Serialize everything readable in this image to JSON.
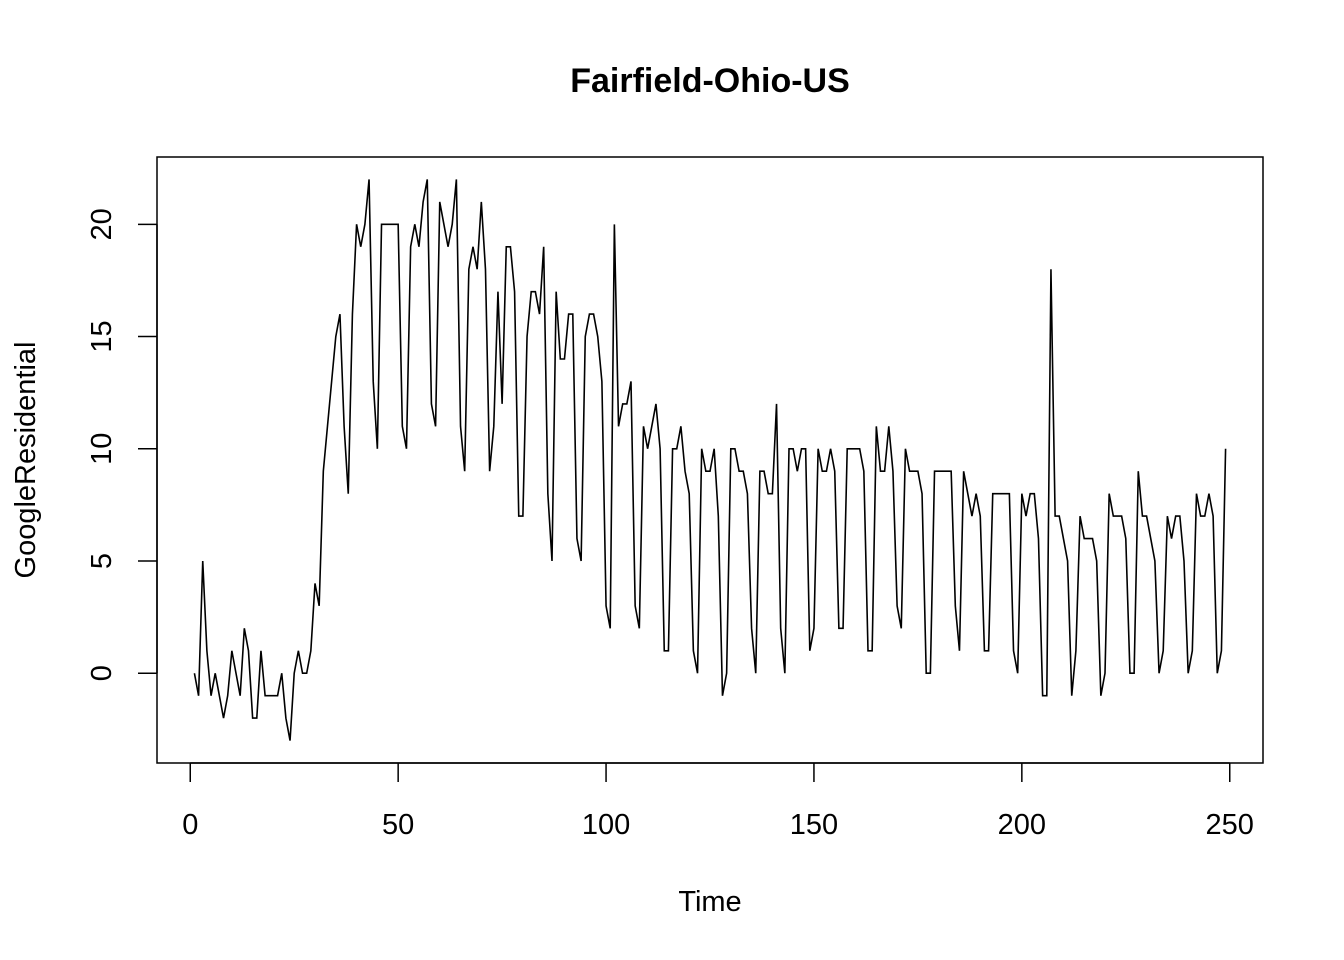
{
  "chart_data": {
    "type": "line",
    "title": "Fairfield-Ohio-US",
    "xlabel": "Time",
    "ylabel": "GoogleResidential",
    "xlim": [
      -8,
      258
    ],
    "ylim": [
      -4,
      23
    ],
    "x_ticks": [
      0,
      50,
      100,
      150,
      200,
      250
    ],
    "y_ticks": [
      0,
      5,
      10,
      15,
      20
    ],
    "x_tick_labels": [
      "0",
      "50",
      "100",
      "150",
      "200",
      "250"
    ],
    "y_tick_labels": [
      "0",
      "5",
      "10",
      "15",
      "20"
    ],
    "grid": false,
    "legend": "none",
    "line_color": "#000000",
    "series": [
      {
        "x_start": 1,
        "values": [
          0,
          -1,
          5,
          1,
          -1,
          0,
          -1,
          -2,
          -1,
          1,
          0,
          -1,
          2,
          1,
          -2,
          -2,
          1,
          -1,
          -1,
          -1,
          -1,
          0,
          -2,
          -3,
          0,
          1,
          0,
          0,
          1,
          4,
          3,
          9,
          11,
          13,
          15,
          16,
          11,
          8,
          16,
          20,
          19,
          20,
          22,
          13,
          10,
          20,
          20,
          20,
          20,
          20,
          11,
          10,
          19,
          20,
          19,
          21,
          22,
          12,
          11,
          21,
          20,
          19,
          20,
          22,
          11,
          9,
          18,
          19,
          18,
          21,
          18,
          9,
          11,
          17,
          12,
          19,
          19,
          17,
          7,
          7,
          15,
          17,
          17,
          16,
          19,
          8,
          5,
          17,
          14,
          14,
          16,
          16,
          6,
          5,
          15,
          16,
          16,
          15,
          13,
          3,
          2,
          20,
          11,
          12,
          12,
          13,
          3,
          2,
          11,
          10,
          11,
          12,
          10,
          1,
          1,
          10,
          10,
          11,
          9,
          8,
          1,
          0,
          10,
          9,
          9,
          10,
          7,
          -1,
          0,
          10,
          10,
          9,
          9,
          8,
          2,
          0,
          9,
          9,
          8,
          8,
          12,
          2,
          0,
          10,
          10,
          9,
          10,
          10,
          1,
          2,
          10,
          9,
          9,
          10,
          9,
          2,
          2,
          10,
          10,
          10,
          10,
          9,
          1,
          1,
          11,
          9,
          9,
          11,
          9,
          3,
          2,
          10,
          9,
          9,
          9,
          8,
          0,
          0,
          9,
          9,
          9,
          9,
          9,
          3,
          1,
          9,
          8,
          7,
          8,
          7,
          1,
          1,
          8,
          8,
          8,
          8,
          8,
          1,
          0,
          8,
          7,
          8,
          8,
          6,
          -1,
          -1,
          18,
          7,
          7,
          6,
          5,
          -1,
          1,
          7,
          6,
          6,
          6,
          5,
          -1,
          0,
          8,
          7,
          7,
          7,
          6,
          0,
          0,
          9,
          7,
          7,
          6,
          5,
          0,
          1,
          7,
          6,
          7,
          7,
          5,
          0,
          1,
          8,
          7,
          7,
          8,
          7,
          0,
          1,
          10
        ]
      }
    ]
  }
}
